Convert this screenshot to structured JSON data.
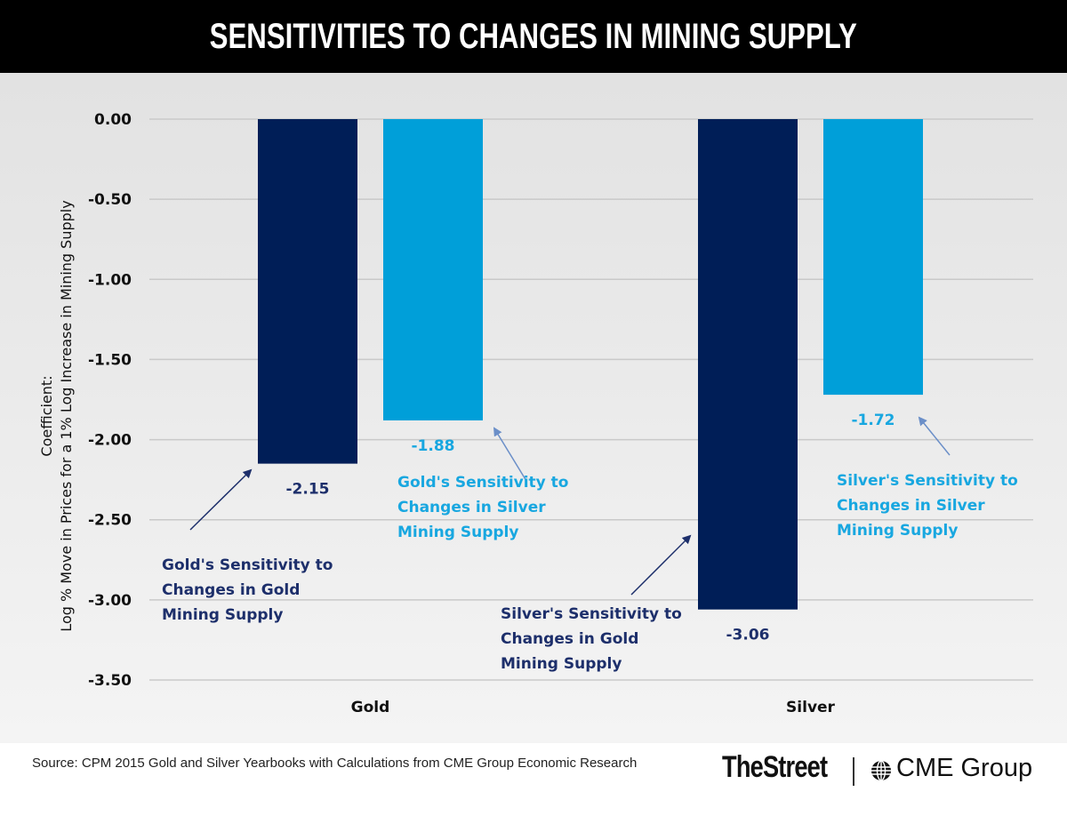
{
  "title": "SENSITIVITIES TO CHANGES IN MINING SUPPLY",
  "colors": {
    "dark_bar": "#001e57",
    "light_bar": "#009fd9",
    "dark_text": "#1d2f6b",
    "light_text": "#18a7e0",
    "arrow_dark": "#1d2f6b",
    "arrow_light": "#6b8fc8"
  },
  "chart_data": {
    "type": "bar",
    "title": "SENSITIVITIES TO CHANGES IN MINING SUPPLY",
    "xlabel": "",
    "ylabel_line1": "Coefficient:",
    "ylabel_line2": "Log % Move in Prices for a 1% Log Increase in Mining Supply",
    "categories": [
      "Gold",
      "Silver"
    ],
    "series": [
      {
        "name": "Sensitivity to Changes in Gold Mining Supply",
        "values": [
          -2.15,
          -3.06
        ],
        "labels": [
          "-2.15",
          "-3.06"
        ]
      },
      {
        "name": "Sensitivity to Changes in Silver Mining Supply",
        "values": [
          -1.88,
          -1.72
        ],
        "labels": [
          "-1.88",
          "-1.72"
        ]
      }
    ],
    "ylim": [
      -3.5,
      0
    ],
    "yticks": [
      "0.00",
      "-0.50",
      "-1.00",
      "-1.50",
      "-2.00",
      "-2.50",
      "-3.00",
      "-3.50"
    ],
    "ytick_values": [
      0,
      -0.5,
      -1,
      -1.5,
      -2,
      -2.5,
      -3,
      -3.5
    ],
    "grid": true,
    "legend": "none",
    "annotations": [
      {
        "lines": [
          "Gold's Sensitivity to",
          "Changes in Gold",
          "Mining Supply"
        ],
        "target": "Gold / gold-supply bar",
        "style": "dark"
      },
      {
        "lines": [
          "Gold's Sensitivity to",
          "Changes in Silver",
          "Mining Supply"
        ],
        "target": "Gold / silver-supply bar",
        "style": "light"
      },
      {
        "lines": [
          "Silver's Sensitivity to",
          "Changes in Gold",
          "Mining Supply"
        ],
        "target": "Silver / gold-supply bar",
        "style": "dark"
      },
      {
        "lines": [
          "Silver's Sensitivity to",
          "Changes in Silver",
          "Mining Supply"
        ],
        "target": "Silver / silver-supply bar",
        "style": "light"
      }
    ]
  },
  "footer": {
    "source": "Source: CPM 2015 Gold and Silver Yearbooks with Calculations from CME Group Economic Research",
    "logo_thestreet": "TheStreet",
    "logo_cme": "CME Group"
  }
}
